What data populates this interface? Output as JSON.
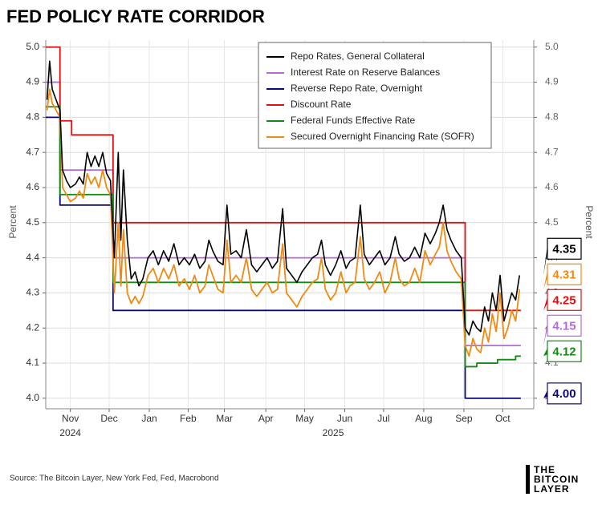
{
  "chart_data": {
    "type": "line",
    "title": "FED POLICY RATE CORRIDOR",
    "y_label": "Percent",
    "y2_label": "Percent",
    "source": "Source: The Bitcoin Layer, New York Fed, Fed, Macrobond",
    "logo": [
      "THE",
      "BITCOIN",
      "LAYER"
    ],
    "grid": true,
    "legend_position": "upper right",
    "xlim": [
      27,
      404
    ],
    "xticks": [
      {
        "value": 46,
        "label": "Nov"
      },
      {
        "value": 76,
        "label": "Dec"
      },
      {
        "value": 107,
        "label": "Jan"
      },
      {
        "value": 137,
        "label": "Feb"
      },
      {
        "value": 165,
        "label": "Mar"
      },
      {
        "value": 197,
        "label": "Apr"
      },
      {
        "value": 227,
        "label": "May"
      },
      {
        "value": 258,
        "label": "Jun"
      },
      {
        "value": 288,
        "label": "Jul"
      },
      {
        "value": 319,
        "label": "Aug"
      },
      {
        "value": 350,
        "label": "Sep"
      },
      {
        "value": 380,
        "label": "Oct"
      }
    ],
    "xyears": [
      {
        "value": 46,
        "label": "2024"
      },
      {
        "value": 249,
        "label": "2025"
      }
    ],
    "ylim": [
      3.97,
      5.02
    ],
    "yticks": [
      {
        "value": 4,
        "label": "4.0"
      },
      4.1,
      4.2,
      4.3,
      4.4,
      4.5,
      4.6,
      4.7,
      4.8,
      4.9,
      {
        "value": 5,
        "label": "5.0"
      }
    ],
    "y2lim": [
      3.97,
      5.02
    ],
    "y2ticks": [
      {
        "value": 4,
        "label": "4.0"
      },
      4.1,
      4.2,
      4.3,
      4.4,
      4.5,
      4.6,
      4.7,
      4.8,
      4.9,
      {
        "value": 5,
        "label": "5.0"
      }
    ],
    "series": [
      {
        "name": "Repo Rates, General Collateral",
        "color": "#000000",
        "end_label": "4.35",
        "x": [
          28,
          30,
          32,
          35,
          38,
          40,
          43,
          46,
          50,
          53,
          56,
          59,
          62,
          65,
          68,
          71,
          74,
          77,
          80,
          83,
          85,
          87,
          90,
          93,
          96,
          99,
          102,
          106,
          110,
          114,
          118,
          122,
          126,
          130,
          134,
          138,
          142,
          146,
          150,
          153,
          156,
          160,
          164,
          167,
          170,
          174,
          178,
          182,
          186,
          190,
          194,
          198,
          202,
          206,
          210,
          213,
          217,
          221,
          225,
          229,
          233,
          237,
          240,
          243,
          247,
          251,
          255,
          259,
          262,
          266,
          270,
          273,
          277,
          281,
          285,
          289,
          293,
          297,
          300,
          304,
          308,
          312,
          316,
          320,
          324,
          328,
          331,
          334,
          337,
          340,
          344,
          348,
          351,
          354,
          357,
          360,
          363,
          366,
          369,
          372,
          375,
          378,
          381,
          384,
          387,
          390,
          393
        ],
        "values": [
          4.85,
          4.96,
          4.88,
          4.85,
          4.82,
          4.65,
          4.62,
          4.6,
          4.61,
          4.63,
          4.61,
          4.7,
          4.66,
          4.69,
          4.66,
          4.7,
          4.64,
          4.62,
          4.4,
          4.7,
          4.45,
          4.65,
          4.45,
          4.34,
          4.36,
          4.32,
          4.34,
          4.4,
          4.42,
          4.38,
          4.42,
          4.39,
          4.44,
          4.38,
          4.4,
          4.38,
          4.41,
          4.37,
          4.39,
          4.45,
          4.42,
          4.39,
          4.38,
          4.55,
          4.41,
          4.42,
          4.4,
          4.48,
          4.38,
          4.36,
          4.38,
          4.4,
          4.37,
          4.39,
          4.54,
          4.37,
          4.35,
          4.33,
          4.36,
          4.38,
          4.4,
          4.41,
          4.45,
          4.38,
          4.35,
          4.38,
          4.42,
          4.37,
          4.39,
          4.4,
          4.55,
          4.41,
          4.38,
          4.4,
          4.42,
          4.38,
          4.4,
          4.46,
          4.41,
          4.39,
          4.4,
          4.43,
          4.4,
          4.47,
          4.44,
          4.47,
          4.5,
          4.55,
          4.48,
          4.45,
          4.42,
          4.4,
          4.2,
          4.18,
          4.22,
          4.2,
          4.19,
          4.26,
          4.22,
          4.3,
          4.25,
          4.35,
          4.22,
          4.26,
          4.3,
          4.28,
          4.35
        ]
      },
      {
        "name": "Interest Rate on Reserve Balances",
        "color": "#b36bd9",
        "end_label": "4.15",
        "x": [
          27,
          38,
          38,
          79,
          79,
          351,
          351,
          394
        ],
        "values": [
          4.9,
          4.9,
          4.65,
          4.65,
          4.4,
          4.4,
          4.15,
          4.15
        ]
      },
      {
        "name": "Reverse Repo Rate, Overnight",
        "color": "#0a0a78",
        "end_label": "4.00",
        "x": [
          27,
          38,
          38,
          79,
          79,
          351,
          351,
          394
        ],
        "values": [
          4.8,
          4.8,
          4.55,
          4.55,
          4.25,
          4.25,
          4,
          4
        ]
      },
      {
        "name": "Discount Rate",
        "color": "#e01010",
        "end_label": "4.25",
        "x": [
          27,
          38,
          38,
          47,
          47,
          79,
          79,
          351,
          351,
          394
        ],
        "values": [
          5,
          5,
          4.79,
          4.79,
          4.75,
          4.75,
          4.5,
          4.5,
          4.25,
          4.25
        ]
      },
      {
        "name": "Federal Funds Effective Rate",
        "color": "#138a13",
        "end_label": "4.12",
        "x": [
          27,
          38,
          38,
          79,
          79,
          351,
          351,
          360,
          360,
          376,
          376,
          390,
          390,
          394
        ],
        "values": [
          4.83,
          4.83,
          4.58,
          4.58,
          4.33,
          4.33,
          4.09,
          4.09,
          4.1,
          4.1,
          4.11,
          4.11,
          4.12,
          4.12
        ]
      },
      {
        "name": "Secured Overnight Financing Rate (SOFR)",
        "color": "#f08a12",
        "end_label": "4.31",
        "x": [
          28,
          30,
          32,
          35,
          38,
          40,
          43,
          46,
          50,
          53,
          56,
          59,
          62,
          65,
          68,
          71,
          74,
          77,
          80,
          83,
          85,
          87,
          90,
          93,
          96,
          99,
          102,
          106,
          110,
          114,
          118,
          122,
          126,
          130,
          134,
          138,
          142,
          146,
          150,
          153,
          156,
          160,
          164,
          167,
          170,
          174,
          178,
          182,
          186,
          190,
          194,
          198,
          202,
          206,
          210,
          213,
          217,
          221,
          225,
          229,
          233,
          237,
          240,
          243,
          247,
          251,
          255,
          259,
          262,
          266,
          270,
          273,
          277,
          281,
          285,
          289,
          293,
          297,
          300,
          304,
          308,
          312,
          316,
          320,
          324,
          328,
          331,
          334,
          337,
          340,
          344,
          348,
          351,
          354,
          357,
          360,
          363,
          366,
          369,
          372,
          375,
          378,
          381,
          384,
          387,
          390,
          393
        ],
        "values": [
          4.82,
          4.88,
          4.84,
          4.82,
          4.8,
          4.6,
          4.58,
          4.56,
          4.57,
          4.59,
          4.57,
          4.64,
          4.61,
          4.63,
          4.6,
          4.65,
          4.6,
          4.58,
          4.3,
          4.5,
          4.32,
          4.48,
          4.3,
          4.27,
          4.29,
          4.27,
          4.29,
          4.35,
          4.37,
          4.33,
          4.37,
          4.34,
          4.38,
          4.32,
          4.34,
          4.31,
          4.35,
          4.3,
          4.32,
          4.38,
          4.35,
          4.31,
          4.3,
          4.45,
          4.33,
          4.35,
          4.33,
          4.4,
          4.31,
          4.29,
          4.31,
          4.33,
          4.3,
          4.31,
          4.44,
          4.3,
          4.28,
          4.26,
          4.29,
          4.31,
          4.33,
          4.34,
          4.4,
          4.31,
          4.28,
          4.3,
          4.36,
          4.3,
          4.32,
          4.33,
          4.46,
          4.34,
          4.31,
          4.33,
          4.36,
          4.3,
          4.33,
          4.4,
          4.34,
          4.32,
          4.33,
          4.37,
          4.33,
          4.42,
          4.38,
          4.41,
          4.43,
          4.5,
          4.42,
          4.39,
          4.36,
          4.34,
          4.15,
          4.12,
          4.17,
          4.14,
          4.13,
          4.2,
          4.16,
          4.24,
          4.19,
          4.3,
          4.17,
          4.2,
          4.25,
          4.22,
          4.31
        ]
      }
    ]
  }
}
